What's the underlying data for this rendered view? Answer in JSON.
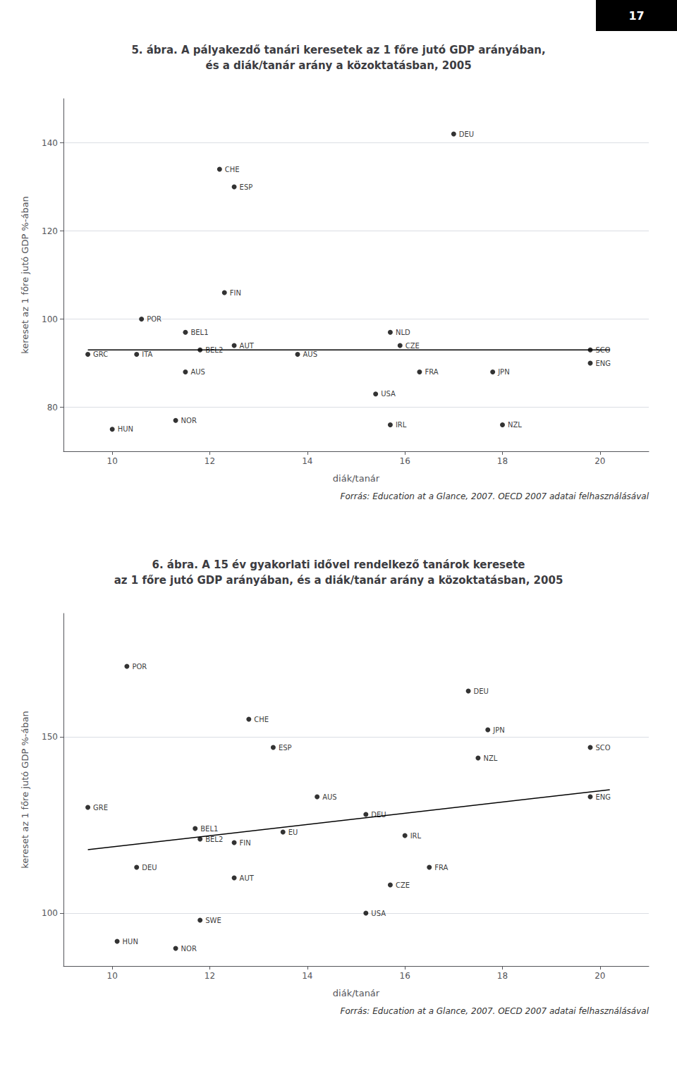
{
  "chart_data": [
    {
      "type": "scatter",
      "title": "5. ábra. A pályakezdő tanári keresetek az 1 főre jutó GDP arányában,\nés a diák/tanár arány a közoktatásban, 2005",
      "xlabel": "diák/tanár",
      "ylabel": "kereset az 1 főre jutó GDP %-ában",
      "xlim": [
        9,
        21
      ],
      "ylim": [
        70,
        150
      ],
      "xticks": [
        10,
        12,
        14,
        16,
        18,
        20
      ],
      "yticks": [
        80,
        100,
        120,
        140
      ],
      "grid": true,
      "color": "#000000",
      "labels": [
        "GRC",
        "ITA",
        "HUN",
        "NOR",
        "POR",
        "BEL1",
        "BEL2",
        "AUS",
        "AUT",
        "FIN",
        "CHE",
        "ESP",
        "AUS",
        "USA",
        "NLD",
        "CZE",
        "IRL",
        "FRA",
        "DEU",
        "JPN",
        "NZL",
        "SCO",
        "ENG"
      ],
      "x": [
        9.5,
        10.5,
        10.0,
        11.3,
        10.6,
        11.5,
        11.8,
        11.5,
        12.5,
        12.3,
        12.2,
        12.5,
        13.8,
        15.4,
        15.7,
        15.9,
        15.7,
        16.3,
        17.0,
        17.8,
        18.0,
        19.8,
        19.8
      ],
      "values": [
        92,
        92,
        75,
        77,
        100,
        97,
        93,
        88,
        94,
        106,
        134,
        130,
        92,
        83,
        97,
        94,
        76,
        88,
        142,
        88,
        76,
        93,
        90
      ],
      "trendline": {
        "x": [
          9.5,
          20.2
        ],
        "values": [
          93,
          93
        ],
        "color": "#000000"
      },
      "source": "Forrás: Education at a Glance, 2007. OECD 2007 adatai felhasználásával",
      "annotations": [
        "17"
      ]
    },
    {
      "type": "scatter",
      "title": "6. ábra. A 15 év gyakorlati idővel rendelkező tanárok keresete\naz 1 főre jutó GDP arányában, és a diák/tanár arány a közoktatásban, 2005",
      "xlabel": "diák/tanár",
      "ylabel": "kereset az 1 főre jutó GDP %-ában",
      "xlim": [
        9,
        21
      ],
      "ylim": [
        85,
        185
      ],
      "xticks": [
        10,
        12,
        14,
        16,
        18,
        20
      ],
      "yticks": [
        100,
        150
      ],
      "grid": true,
      "color": "#000000",
      "labels": [
        "GRE",
        "HUN",
        "DEU",
        "POR",
        "NOR",
        "BEL1",
        "BEL2",
        "SWE",
        "AUT",
        "FIN",
        "EU",
        "CHE",
        "ESP",
        "AUS",
        "DEU",
        "USA",
        "CZE",
        "IRL",
        "FRA",
        "NZL",
        "DEU",
        "JPN",
        "SCO",
        "ENG"
      ],
      "x": [
        9.5,
        10.1,
        10.5,
        10.3,
        11.3,
        11.7,
        11.8,
        11.8,
        12.5,
        12.5,
        13.5,
        12.8,
        13.3,
        14.2,
        15.2,
        15.2,
        15.7,
        16.0,
        16.5,
        17.5,
        17.3,
        17.7,
        19.8,
        19.8
      ],
      "values": [
        130,
        92,
        113,
        170,
        90,
        124,
        121,
        98,
        110,
        120,
        123,
        155,
        147,
        133,
        128,
        100,
        108,
        122,
        113,
        144,
        163,
        152,
        147,
        133
      ],
      "trendline": {
        "x": [
          9.5,
          20.2
        ],
        "values": [
          118,
          135
        ],
        "color": "#000000"
      },
      "source": "Forrás: Education at a Glance, 2007. OECD 2007 adatai felhasználásával"
    }
  ]
}
